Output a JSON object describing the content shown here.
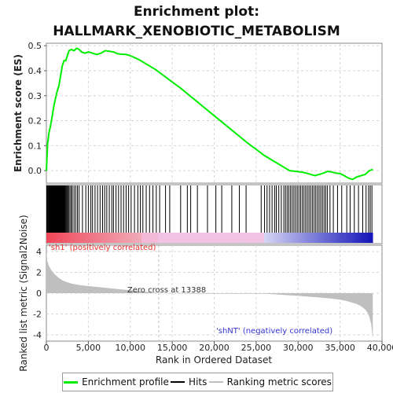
{
  "chart_data": {
    "type": "line",
    "title_line1": "Enrichment plot:",
    "title_line2": "HALLMARK_XENOBIOTIC_METABOLISM",
    "es_ylabel": "Enrichment score (ES)",
    "rank_ylabel_line1": "Ranked list metric (Signal2Noise)",
    "xlabel": "Rank in Ordered Dataset",
    "xlim": [
      0,
      40000
    ],
    "x_ticks": [
      0,
      5000,
      10000,
      15000,
      20000,
      25000,
      30000,
      35000,
      40000
    ],
    "x_tick_labels": [
      "0",
      "5,000",
      "10,000",
      "15,000",
      "20,000",
      "25,000",
      "30,000",
      "35,000",
      "40,000"
    ],
    "es_ylim": [
      -0.05,
      0.51
    ],
    "es_ticks": [
      0.0,
      0.1,
      0.2,
      0.3,
      0.4,
      0.5
    ],
    "es_tick_labels": [
      "0.0",
      "0.1",
      "0.2",
      "0.3",
      "0.4",
      "0.5"
    ],
    "metric_ylim": [
      -4.6,
      4.6
    ],
    "metric_ticks": [
      -4,
      -2,
      0,
      2,
      4
    ],
    "metric_tick_labels": [
      "-4",
      "-2",
      "0",
      "2",
      "4"
    ],
    "total_ranks": 38900,
    "zero_cross": 13388,
    "zero_cross_label": "Zero cross at 13388",
    "pos_label": "'sh1' (positively correlated)",
    "neg_label": "'shNT' (negatively correlated)",
    "colors": {
      "es_line": "#00ee00",
      "hits": "#000000",
      "metric_fill": "#bfbfbf",
      "pos_text": "#e8342f",
      "neg_text": "#3333cc",
      "grid": "#d6d6d6"
    },
    "series": [
      {
        "name": "Enrichment profile",
        "x": [
          0,
          150,
          300,
          500,
          700,
          900,
          1100,
          1300,
          1500,
          1700,
          1900,
          2100,
          2300,
          2500,
          2700,
          3000,
          3300,
          3600,
          3900,
          4200,
          4600,
          5000,
          5500,
          6000,
          6500,
          7000,
          7500,
          8000,
          8500,
          9000,
          9500,
          10000,
          11000,
          12000,
          13000,
          14000,
          15000,
          16000,
          18000,
          20000,
          22000,
          24000,
          25000,
          26000,
          27000,
          28000,
          29000,
          29500,
          30000,
          30500,
          31000,
          31500,
          32000,
          32500,
          33000,
          33500,
          34000,
          34500,
          35000,
          35500,
          36000,
          36500,
          37000,
          37500,
          38000,
          38500,
          38900
        ],
        "values": [
          0.0,
          0.11,
          0.15,
          0.18,
          0.22,
          0.26,
          0.29,
          0.32,
          0.34,
          0.38,
          0.42,
          0.44,
          0.44,
          0.46,
          0.48,
          0.485,
          0.48,
          0.49,
          0.485,
          0.475,
          0.47,
          0.475,
          0.47,
          0.465,
          0.47,
          0.48,
          0.478,
          0.475,
          0.468,
          0.466,
          0.465,
          0.46,
          0.445,
          0.425,
          0.405,
          0.38,
          0.355,
          0.33,
          0.275,
          0.22,
          0.165,
          0.11,
          0.085,
          0.06,
          0.04,
          0.02,
          0.0,
          -0.002,
          -0.004,
          -0.006,
          -0.01,
          -0.015,
          -0.02,
          -0.015,
          -0.01,
          -0.003,
          -0.005,
          -0.01,
          -0.012,
          -0.02,
          -0.03,
          -0.035,
          -0.025,
          -0.02,
          -0.015,
          0.0,
          0.005
        ]
      },
      {
        "name": "Hits",
        "positions": [
          50,
          130,
          210,
          290,
          360,
          420,
          480,
          540,
          600,
          660,
          720,
          780,
          840,
          900,
          960,
          1020,
          1080,
          1140,
          1200,
          1260,
          1320,
          1380,
          1440,
          1500,
          1560,
          1620,
          1680,
          1740,
          1800,
          1860,
          1920,
          1980,
          2040,
          2100,
          2160,
          2250,
          2350,
          2450,
          2550,
          2650,
          2800,
          2950,
          3100,
          3300,
          3500,
          3700,
          3900,
          4300,
          4700,
          5000,
          5300,
          5500,
          5800,
          6100,
          6400,
          6700,
          6950,
          7200,
          7500,
          7800,
          8000,
          8300,
          8600,
          8900,
          9200,
          9500,
          9800,
          10100,
          10500,
          10900,
          11200,
          11500,
          11900,
          12300,
          12700,
          13100,
          13500,
          14200,
          14700,
          16000,
          16800,
          17200,
          18000,
          19200,
          20200,
          20900,
          22100,
          23000,
          23800,
          25600,
          26000,
          26300,
          26600,
          26900,
          27200,
          27400,
          27700,
          28000,
          28300,
          28500,
          28700,
          28900,
          29100,
          29300,
          29500,
          29700,
          29900,
          30100,
          30300,
          30500,
          30700,
          30900,
          31100,
          31300,
          31500,
          31700,
          31900,
          32100,
          32300,
          32500,
          32700,
          32900,
          33100,
          33300,
          33500,
          33800,
          34200,
          34700,
          35200,
          35800,
          36200,
          36700,
          37200,
          37700,
          38100,
          38400,
          38600,
          38800
        ]
      },
      {
        "name": "Ranking metric scores",
        "x": [
          0,
          100,
          300,
          600,
          1000,
          1500,
          2000,
          2500,
          3000,
          4000,
          5000,
          6000,
          7000,
          8000,
          9000,
          10000,
          11000,
          12000,
          13000,
          13388,
          14000,
          16000,
          18000,
          20000,
          22000,
          24000,
          26000,
          27000,
          28000,
          29000,
          30000,
          31000,
          32000,
          33000,
          34000,
          35000,
          35500,
          36000,
          36500,
          37000,
          37500,
          38000,
          38300,
          38500,
          38700,
          38800,
          38900
        ],
        "values": [
          3.9,
          3.1,
          2.6,
          2.2,
          1.8,
          1.45,
          1.2,
          1.05,
          0.92,
          0.78,
          0.68,
          0.6,
          0.52,
          0.44,
          0.36,
          0.28,
          0.2,
          0.12,
          0.04,
          0.0,
          -0.02,
          -0.04,
          -0.05,
          -0.05,
          -0.05,
          -0.05,
          -0.06,
          -0.1,
          -0.15,
          -0.2,
          -0.26,
          -0.32,
          -0.38,
          -0.45,
          -0.52,
          -0.62,
          -0.7,
          -0.8,
          -0.92,
          -1.05,
          -1.25,
          -1.55,
          -1.9,
          -2.3,
          -2.9,
          -3.6,
          -4.4
        ]
      }
    ],
    "legend": [
      "Enrichment profile",
      "Hits",
      "Ranking metric scores"
    ]
  }
}
